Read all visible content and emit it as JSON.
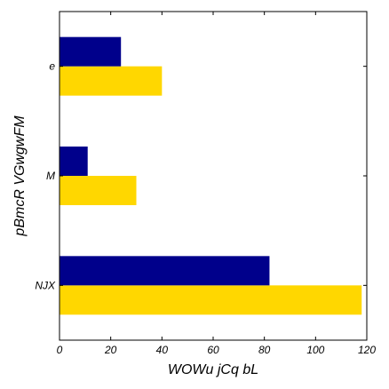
{
  "chart_data": {
    "type": "bar",
    "orientation": "horizontal",
    "xlabel": "WOWu jCq bL",
    "ylabel": "pBmcR VGwgwFM",
    "categories": [
      "NJX",
      "M",
      "e"
    ],
    "series": [
      {
        "color": "#FFD700",
        "values": [
          118,
          30,
          40
        ]
      },
      {
        "color": "#00008B",
        "values": [
          82,
          11,
          24
        ]
      }
    ],
    "xlim": [
      0,
      120
    ],
    "xticks": [
      0,
      20,
      40,
      60,
      80,
      100,
      120
    ],
    "grid": false
  }
}
